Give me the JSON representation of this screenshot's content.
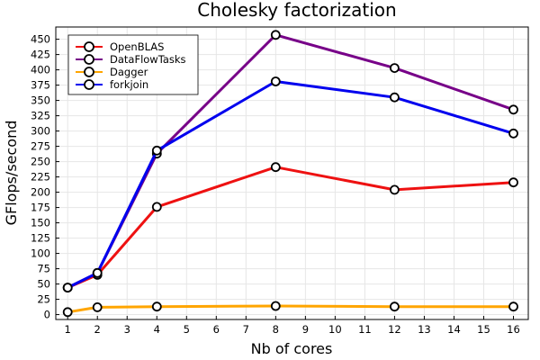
{
  "chart_data": {
    "type": "line",
    "title": "Cholesky factorization",
    "xlabel": "Nb of cores",
    "ylabel": "GFlops/second",
    "xlim": [
      0.6,
      16.5
    ],
    "ylim": [
      -8,
      470
    ],
    "x_ticks": [
      1,
      2,
      3,
      4,
      5,
      6,
      7,
      8,
      9,
      10,
      11,
      12,
      13,
      14,
      15,
      16
    ],
    "y_ticks": [
      0,
      25,
      50,
      75,
      100,
      125,
      150,
      175,
      200,
      225,
      250,
      275,
      300,
      325,
      350,
      375,
      400,
      425,
      450
    ],
    "grid": true,
    "legend_position": "top-left",
    "x": [
      1,
      2,
      4,
      8,
      12,
      16
    ],
    "series": [
      {
        "name": "OpenBLAS",
        "color": "#ee1111",
        "values": [
          44,
          65,
          176,
          241,
          204,
          216
        ]
      },
      {
        "name": "DataFlowTasks",
        "color": "#770088",
        "values": [
          44,
          68,
          263,
          457,
          403,
          335
        ]
      },
      {
        "name": "Dagger",
        "color": "#ffa500",
        "values": [
          4,
          12,
          13,
          14,
          13,
          13
        ]
      },
      {
        "name": "forkjoin",
        "color": "#0000ee",
        "values": [
          44,
          68,
          268,
          381,
          355,
          296
        ]
      }
    ]
  }
}
